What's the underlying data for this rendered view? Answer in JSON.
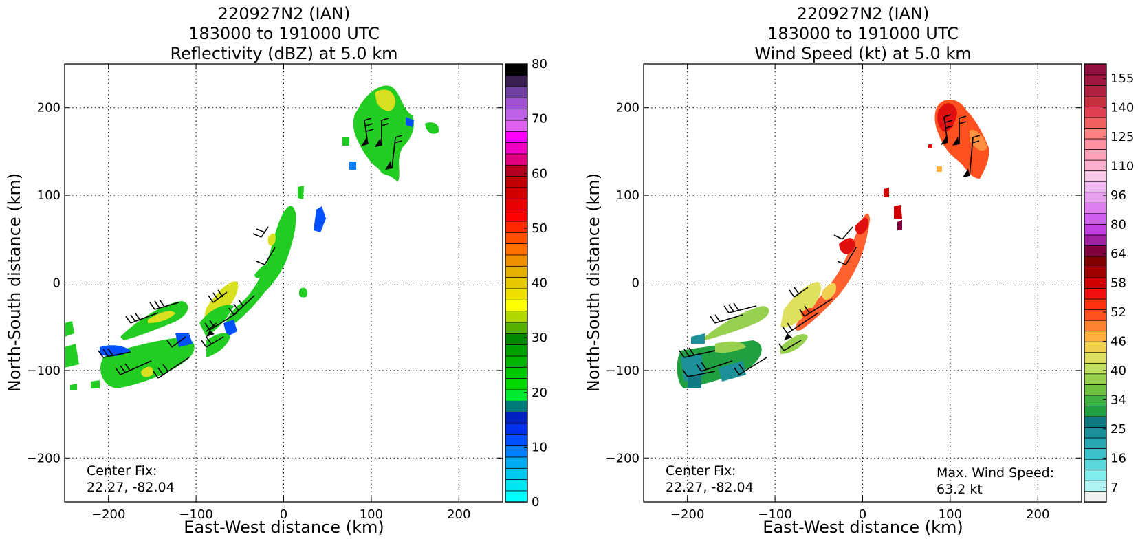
{
  "panels": [
    {
      "title_lines": [
        "220927N2 (IAN)",
        "183000 to 191000 UTC",
        "Reflectivity (dBZ) at 5.0 km"
      ],
      "xlabel": "East-West distance (km)",
      "ylabel": "North-South distance (km)",
      "center_fix_label": "Center Fix:",
      "center_fix_value": "22.27, -82.04",
      "colorbar": {
        "label_values": [
          "0",
          "10",
          "20",
          "30",
          "40",
          "50",
          "60",
          "70",
          "80"
        ],
        "colors": [
          "#00ffff",
          "#00e6f0",
          "#00c8f0",
          "#00aaf0",
          "#0080ff",
          "#0050ff",
          "#0030ee",
          "#0020c0",
          "#007a7a",
          "#00e830",
          "#00d800",
          "#00c800",
          "#00b400",
          "#00a000",
          "#008c00",
          "#55b000",
          "#b0d800",
          "#ffff00",
          "#f0e000",
          "#e6c800",
          "#e6b000",
          "#ef9000",
          "#ff7000",
          "#ff5000",
          "#ff2800",
          "#ff0000",
          "#e80000",
          "#d40000",
          "#c00000",
          "#b00020",
          "#e00080",
          "#f000c0",
          "#ff00ff",
          "#e060f0",
          "#c060e8",
          "#a050d0",
          "#7040a0",
          "#3a2050",
          "#000000"
        ]
      }
    },
    {
      "title_lines": [
        "220927N2 (IAN)",
        "183000 to 191000 UTC",
        "Wind Speed (kt) at 5.0 km"
      ],
      "xlabel": "East-West distance (km)",
      "ylabel": "North-South distance (km)",
      "center_fix_label": "Center Fix:",
      "center_fix_value": "22.27, -82.04",
      "max_wind_label": "Max. Wind Speed:",
      "max_wind_value": "63.2 kt",
      "colorbar": {
        "label_values": [
          "7",
          "16",
          "25",
          "34",
          "40",
          "46",
          "52",
          "58",
          "64",
          "80",
          "96",
          "110",
          "125",
          "140",
          "155"
        ],
        "colors": [
          "#f0f0f0",
          "#b0f4f4",
          "#80ecec",
          "#5ad8dc",
          "#3cc0c8",
          "#28a8b0",
          "#1c9098",
          "#107880",
          "#20a040",
          "#40b040",
          "#70c040",
          "#98d050",
          "#c0e060",
          "#e0e060",
          "#f0d050",
          "#ffb040",
          "#ff8030",
          "#ff5020",
          "#ff3010",
          "#f01010",
          "#d00000",
          "#a00000",
          "#800000",
          "#800040",
          "#a020a0",
          "#c040e0",
          "#d060f0",
          "#e080f0",
          "#e8a0f0",
          "#f0b8f0",
          "#f8c8e8",
          "#ffb0d0",
          "#ffa0b8",
          "#ff90a0",
          "#ff8080",
          "#f06060",
          "#e04050",
          "#c83040",
          "#b02040",
          "#a01840",
          "#901040"
        ]
      }
    }
  ],
  "chart_data": [
    {
      "type": "heatmap",
      "title": "220927N2 (IAN) 183000 to 191000 UTC Reflectivity (dBZ) at 5.0 km",
      "xlabel": "East-West distance (km)",
      "ylabel": "North-South distance (km)",
      "xlim": [
        -250,
        250
      ],
      "ylim": [
        -250,
        250
      ],
      "x_ticks": [
        -200,
        -100,
        0,
        100,
        200
      ],
      "y_ticks": [
        -200,
        -100,
        0,
        100,
        200
      ],
      "grid": true,
      "colorbar_range": [
        0,
        80
      ],
      "colorbar_ticks": [
        0,
        10,
        20,
        30,
        40,
        50,
        60,
        70,
        80
      ],
      "annotations": [
        "Center Fix:",
        "22.27, -82.04"
      ]
    },
    {
      "type": "heatmap",
      "title": "220927N2 (IAN) 183000 to 191000 UTC Wind Speed (kt) at 5.0 km",
      "xlabel": "East-West distance (km)",
      "ylabel": "North-South distance (km)",
      "xlim": [
        -250,
        250
      ],
      "ylim": [
        -250,
        250
      ],
      "x_ticks": [
        -200,
        -100,
        0,
        100,
        200
      ],
      "y_ticks": [
        -200,
        -100,
        0,
        100,
        200
      ],
      "grid": true,
      "colorbar_ticks": [
        7,
        16,
        25,
        34,
        40,
        46,
        52,
        58,
        64,
        80,
        96,
        110,
        125,
        140,
        155
      ],
      "annotations": [
        "Center Fix:",
        "22.27, -82.04",
        "Max. Wind Speed:",
        "63.2 kt"
      ],
      "max_wind_kt": 63.2
    }
  ]
}
